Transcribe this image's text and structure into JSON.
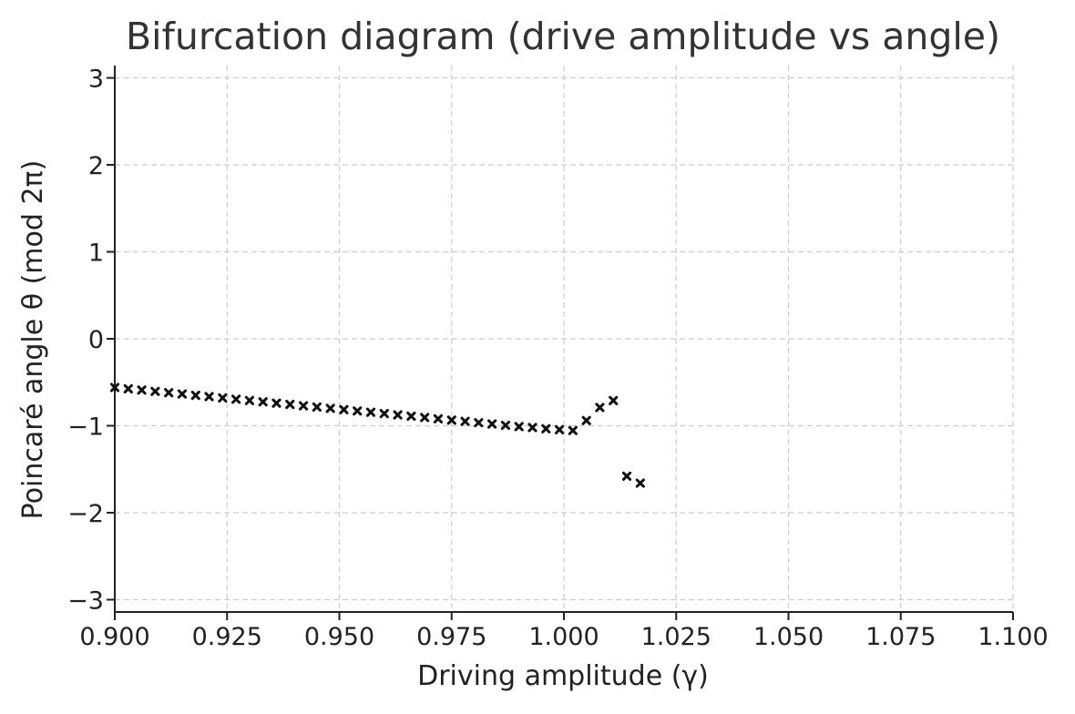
{
  "chart_data": {
    "type": "scatter",
    "title": "Bifurcation diagram (drive amplitude vs angle)",
    "xlabel": "Driving amplitude (γ)",
    "ylabel": "Poincaré angle θ (mod 2π)",
    "xlim": [
      0.9,
      1.1
    ],
    "ylim": [
      -3.1416,
      3.1416
    ],
    "xticks": [
      0.9,
      0.925,
      0.95,
      0.975,
      1.0,
      1.025,
      1.05,
      1.075,
      1.1
    ],
    "xtick_labels": [
      "0.900",
      "0.925",
      "0.950",
      "0.975",
      "1.000",
      "1.025",
      "1.050",
      "1.075",
      "1.100"
    ],
    "yticks": [
      -3,
      -2,
      -1,
      0,
      1,
      2,
      3
    ],
    "ytick_labels": [
      "−3",
      "−2",
      "−1",
      "0",
      "1",
      "2",
      "3"
    ],
    "grid": true,
    "marker": "x",
    "color": "#111111",
    "series": [
      {
        "x": [
          0.9,
          0.903,
          0.906,
          0.909,
          0.912,
          0.915,
          0.918,
          0.921,
          0.924,
          0.927,
          0.93,
          0.933,
          0.936,
          0.939,
          0.942,
          0.945,
          0.948,
          0.951,
          0.954,
          0.957,
          0.96,
          0.963,
          0.966,
          0.969,
          0.972,
          0.975,
          0.978,
          0.981,
          0.984,
          0.987,
          0.99,
          0.993,
          0.996,
          0.999,
          1.002,
          1.005,
          1.008,
          1.011,
          1.014,
          1.017
        ],
        "y": [
          -0.56,
          -0.575,
          -0.59,
          -0.605,
          -0.62,
          -0.635,
          -0.65,
          -0.665,
          -0.68,
          -0.695,
          -0.71,
          -0.725,
          -0.74,
          -0.755,
          -0.77,
          -0.785,
          -0.8,
          -0.815,
          -0.83,
          -0.845,
          -0.86,
          -0.875,
          -0.89,
          -0.905,
          -0.92,
          -0.935,
          -0.95,
          -0.965,
          -0.98,
          -0.995,
          -1.01,
          -1.02,
          -1.035,
          -1.045,
          -1.055,
          -0.94,
          -0.79,
          -0.71,
          -1.58,
          -1.66
        ]
      }
    ]
  }
}
